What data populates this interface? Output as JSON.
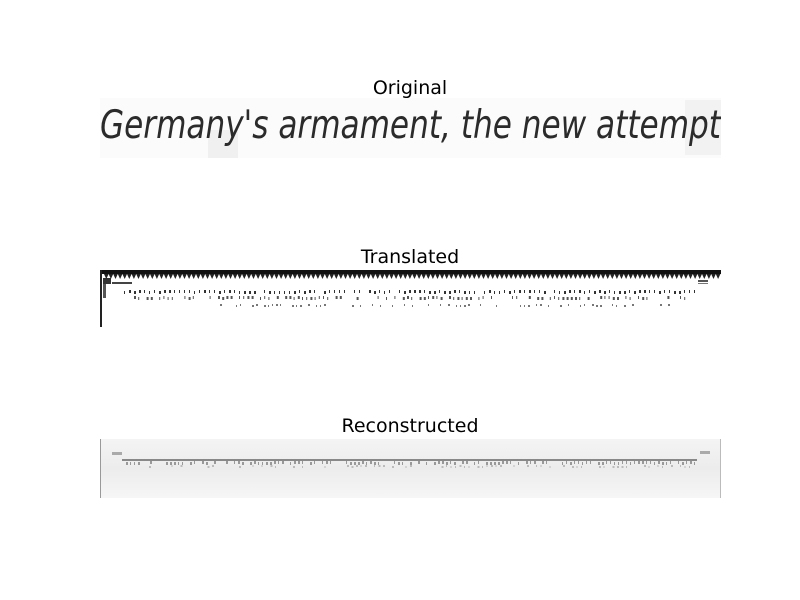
{
  "panels": {
    "original": {
      "title": "Original",
      "handwriting_text": "Germany's armament, the new attempt"
    },
    "translated": {
      "title": "Translated"
    },
    "reconstructed": {
      "title": "Reconstructed"
    }
  }
}
